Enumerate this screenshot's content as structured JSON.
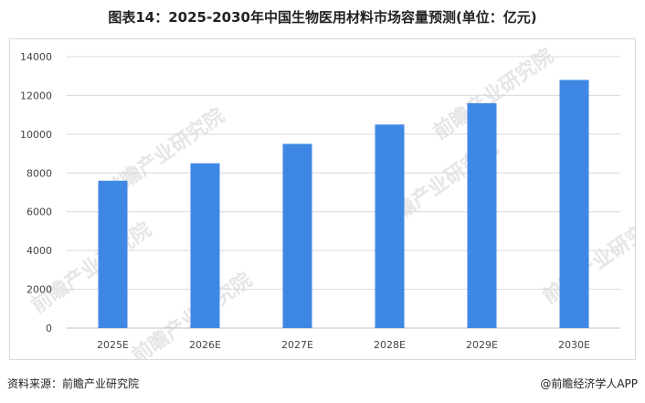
{
  "title": "图表14：2025-2030年中国生物医用材料市场容量预测(单位：亿元)",
  "source": "资料来源：前瞻产业研究院",
  "brand": "@前瞻经济学人APP",
  "watermark": "前瞻产业研究院",
  "bar_color": "#3f87e4",
  "chart_data": {
    "type": "bar",
    "categories": [
      "2025E",
      "2026E",
      "2027E",
      "2028E",
      "2029E",
      "2030E"
    ],
    "values": [
      7600,
      8500,
      9500,
      10500,
      11600,
      12800
    ],
    "yticks": [
      0,
      2000,
      4000,
      6000,
      8000,
      10000,
      12000,
      14000
    ],
    "ylim": [
      0,
      14000
    ],
    "grid": true,
    "legend": "none"
  }
}
